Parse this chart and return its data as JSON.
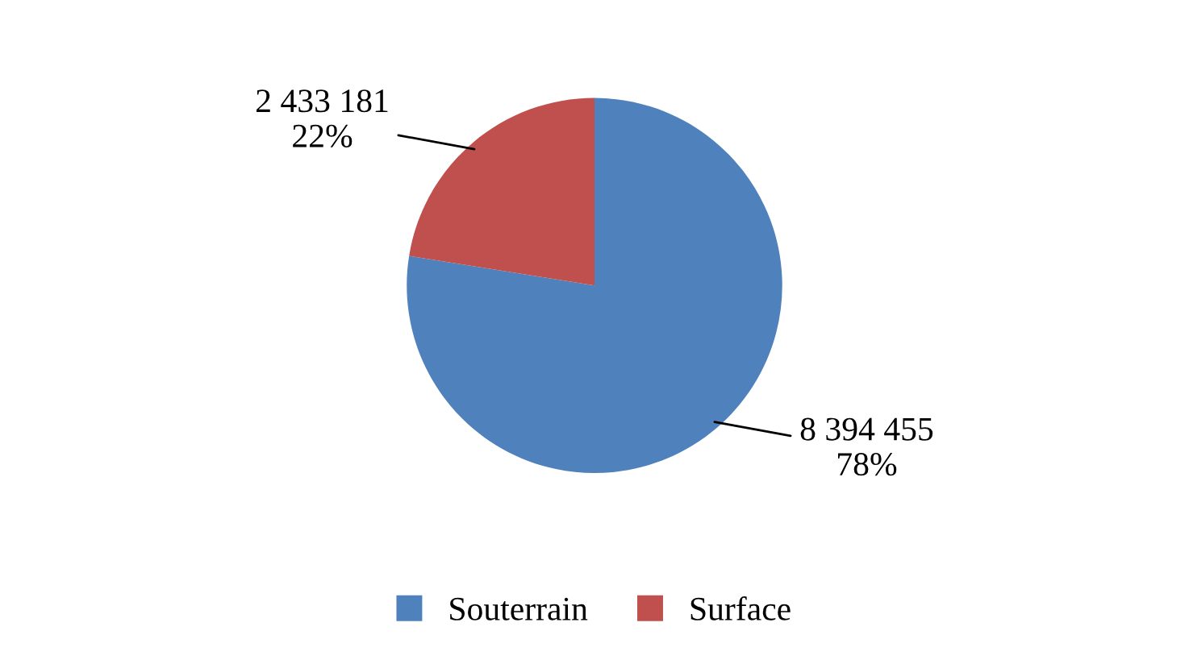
{
  "chart_data": {
    "type": "pie",
    "categories": [
      "Souterrain",
      "Surface"
    ],
    "values": [
      8394455,
      2433181
    ],
    "colors": [
      "#4f81bd",
      "#c0504d"
    ],
    "value_labels": [
      "8 394 455\n78%",
      "2 433 181\n22%"
    ],
    "legend": "bottom"
  }
}
